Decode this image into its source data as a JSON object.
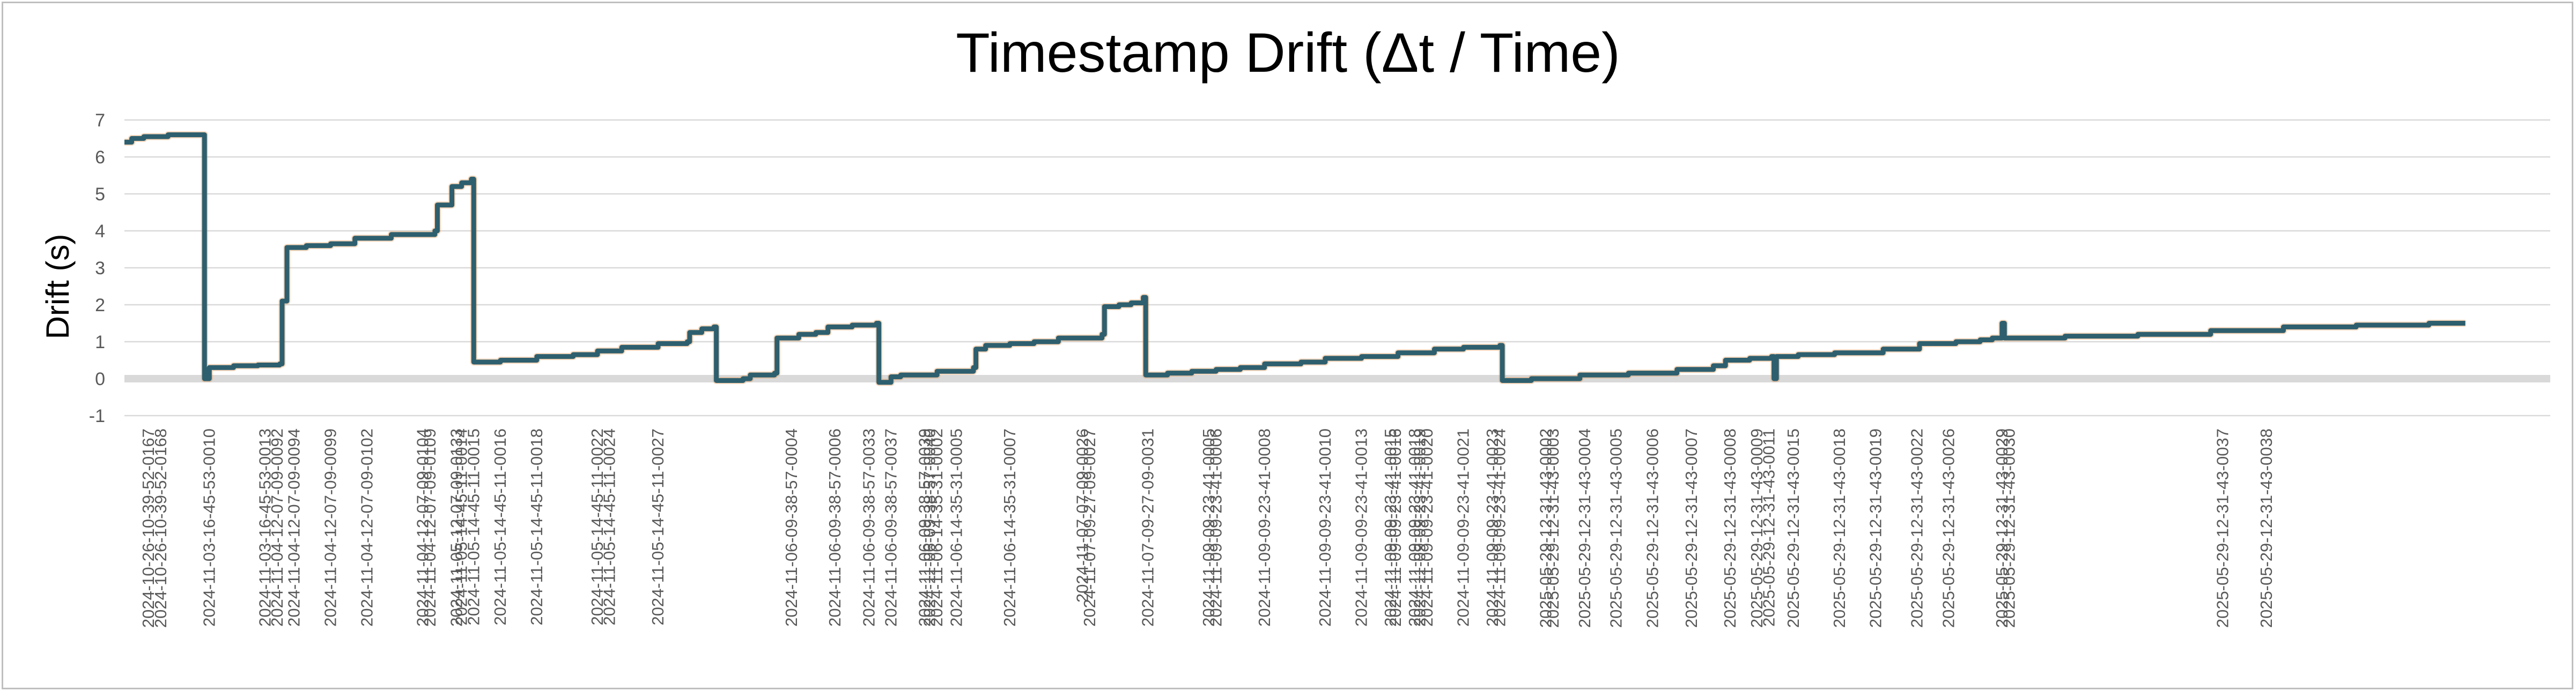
{
  "chart_data": {
    "type": "line",
    "title": "Timestamp Drift (Δt / Time)",
    "xlabel": "",
    "ylabel": "Drift (s)",
    "ylim": [
      -1,
      7
    ],
    "yticks": [
      -1,
      0,
      1,
      2,
      3,
      4,
      5,
      6,
      7
    ],
    "grid": true,
    "legend": "none",
    "colors": {
      "line": "#2e5f6e",
      "line_glow": "#e38a3c",
      "grid": "#d9d9d9",
      "zero_line": "#d9d9d9"
    },
    "x_count": 100,
    "x_labels": [
      {
        "i": 1.0,
        "label": "2024-10-26-10-39-52-0167"
      },
      {
        "i": 1.5,
        "label": "2024-10-26-10-39-52-0168"
      },
      {
        "i": 3.5,
        "label": "2024-11-03-16-45-53-0010"
      },
      {
        "i": 5.8,
        "label": "2024-11-03-16-45-53-0013"
      },
      {
        "i": 6.3,
        "label": "2024-11-04-12-07-09-0092"
      },
      {
        "i": 7.0,
        "label": "2024-11-04-12-07-09-0094"
      },
      {
        "i": 8.5,
        "label": "2024-11-04-12-07-09-0099"
      },
      {
        "i": 10.0,
        "label": "2024-11-04-12-07-09-0102"
      },
      {
        "i": 12.3,
        "label": "2024-11-04-12-07-09-0104"
      },
      {
        "i": 12.6,
        "label": "2024-11-04-12-07-09-0109"
      },
      {
        "i": 13.7,
        "label": "2024-11-05-12-07-09-0133"
      },
      {
        "i": 13.9,
        "label": "2024-11-05-14-45-11-0014"
      },
      {
        "i": 14.4,
        "label": "2024-11-05-14-45-11-0015"
      },
      {
        "i": 15.5,
        "label": "2024-11-05-14-45-11-0016"
      },
      {
        "i": 17.0,
        "label": "2024-11-05-14-45-11-0018"
      },
      {
        "i": 19.5,
        "label": "2024-11-05-14-45-11-0022"
      },
      {
        "i": 20.0,
        "label": "2024-11-05-14-45-11-0024"
      },
      {
        "i": 22.0,
        "label": "2024-11-05-14-45-11-0027"
      },
      {
        "i": 27.5,
        "label": "2024-11-06-09-38-57-0004"
      },
      {
        "i": 29.3,
        "label": "2024-11-06-09-38-57-0006"
      },
      {
        "i": 30.7,
        "label": "2024-11-06-09-38-57-0033"
      },
      {
        "i": 31.6,
        "label": "2024-11-06-09-38-57-0037"
      },
      {
        "i": 33.0,
        "label": "2024-11-06-09-38-57-0039"
      },
      {
        "i": 33.2,
        "label": "2024-11-06-09-38-57-0040"
      },
      {
        "i": 33.5,
        "label": "2024-11-06-14-35-31-0002"
      },
      {
        "i": 34.3,
        "label": "2024-11-06-14-35-31-0005"
      },
      {
        "i": 36.5,
        "label": "2024-11-06-14-35-31-0007"
      },
      {
        "i": 39.5,
        "label": "2024-11-07-07-09-0026"
      },
      {
        "i": 39.8,
        "label": "2024-11-07-09-27-09-0027"
      },
      {
        "i": 42.2,
        "label": "2024-11-07-09-27-09-0031"
      },
      {
        "i": 44.7,
        "label": "2024-11-09-09-23-41-0005"
      },
      {
        "i": 45.0,
        "label": "2024-11-09-09-23-41-0006"
      },
      {
        "i": 47.0,
        "label": "2024-11-09-09-23-41-0008"
      },
      {
        "i": 49.5,
        "label": "2024-11-09-09-23-41-0010"
      },
      {
        "i": 51.0,
        "label": "2024-11-09-09-23-41-0013"
      },
      {
        "i": 52.2,
        "label": "2024-11-09-09-23-41-0015"
      },
      {
        "i": 52.4,
        "label": "2024-11-09-09-23-41-0016"
      },
      {
        "i": 53.2,
        "label": "2024-11-09-09-23-41-0018"
      },
      {
        "i": 53.4,
        "label": "2024-11-09-09-23-41-0019"
      },
      {
        "i": 53.7,
        "label": "2024-11-09-09-23-41-0020"
      },
      {
        "i": 55.2,
        "label": "2024-11-09-09-23-41-0021"
      },
      {
        "i": 56.4,
        "label": "2024-11-09-09-23-41-0023"
      },
      {
        "i": 56.7,
        "label": "2024-11-09-09-23-41-0024"
      },
      {
        "i": 58.6,
        "label": "2025-05-29-12-31-43-0002"
      },
      {
        "i": 58.9,
        "label": "2025-05-29-12-31-43-0003"
      },
      {
        "i": 60.2,
        "label": "2025-05-29-12-31-43-0004"
      },
      {
        "i": 61.5,
        "label": "2025-05-29-12-31-43-0005"
      },
      {
        "i": 63.0,
        "label": "2025-05-29-12-31-43-0006"
      },
      {
        "i": 64.6,
        "label": "2025-05-29-12-31-43-0007"
      },
      {
        "i": 66.2,
        "label": "2025-05-29-12-31-43-0008"
      },
      {
        "i": 67.3,
        "label": "2025-05-29-12-31-43-0009"
      },
      {
        "i": 67.8,
        "label": "2025-05-29-12-31-43-0011"
      },
      {
        "i": 68.8,
        "label": "2025-05-29-12-31-43-0015"
      },
      {
        "i": 70.7,
        "label": "2025-05-29-12-31-43-0018"
      },
      {
        "i": 72.2,
        "label": "2025-05-29-12-31-43-0019"
      },
      {
        "i": 73.9,
        "label": "2025-05-29-12-31-43-0022"
      },
      {
        "i": 75.2,
        "label": "2025-05-29-12-31-43-0026"
      },
      {
        "i": 77.4,
        "label": "2025-05-29-12-31-43-0029"
      },
      {
        "i": 77.7,
        "label": "2025-05-29-12-31-43-0030"
      },
      {
        "i": 86.5,
        "label": "2025-05-29-12-31-43-0037"
      },
      {
        "i": 88.3,
        "label": "2025-05-29-12-31-43-0038"
      }
    ],
    "series": [
      {
        "points": [
          [
            0,
            6.4
          ],
          [
            0.3,
            6.5
          ],
          [
            0.8,
            6.55
          ],
          [
            1.8,
            6.6
          ],
          [
            3.2,
            6.6
          ],
          [
            3.3,
            0.0
          ],
          [
            3.5,
            0.3
          ],
          [
            4.5,
            0.35
          ],
          [
            5.5,
            0.37
          ],
          [
            6.4,
            0.4
          ],
          [
            6.5,
            2.1
          ],
          [
            6.7,
            3.55
          ],
          [
            7.5,
            3.6
          ],
          [
            8.5,
            3.65
          ],
          [
            9.5,
            3.8
          ],
          [
            11.0,
            3.9
          ],
          [
            12.8,
            4.0
          ],
          [
            12.9,
            4.7
          ],
          [
            13.4,
            4.7
          ],
          [
            13.5,
            5.2
          ],
          [
            13.9,
            5.3
          ],
          [
            14.3,
            5.4
          ],
          [
            14.4,
            0.45
          ],
          [
            15.5,
            0.5
          ],
          [
            17.0,
            0.6
          ],
          [
            18.5,
            0.65
          ],
          [
            19.5,
            0.75
          ],
          [
            20.5,
            0.85
          ],
          [
            22.0,
            0.95
          ],
          [
            23.2,
            1.0
          ],
          [
            23.3,
            1.25
          ],
          [
            23.8,
            1.35
          ],
          [
            24.3,
            1.4
          ],
          [
            24.4,
            -0.05
          ],
          [
            25.5,
            0.0
          ],
          [
            25.8,
            0.1
          ],
          [
            26.8,
            0.15
          ],
          [
            26.9,
            1.1
          ],
          [
            27.8,
            1.2
          ],
          [
            28.5,
            1.25
          ],
          [
            29.0,
            1.4
          ],
          [
            30.0,
            1.45
          ],
          [
            31.0,
            1.5
          ],
          [
            31.1,
            -0.1
          ],
          [
            31.6,
            0.05
          ],
          [
            32.0,
            0.1
          ],
          [
            33.5,
            0.2
          ],
          [
            35.0,
            0.3
          ],
          [
            35.1,
            0.8
          ],
          [
            35.5,
            0.9
          ],
          [
            36.5,
            0.95
          ],
          [
            37.5,
            1.0
          ],
          [
            38.5,
            1.1
          ],
          [
            40.3,
            1.2
          ],
          [
            40.4,
            1.95
          ],
          [
            41.0,
            2.0
          ],
          [
            41.5,
            2.05
          ],
          [
            42.0,
            2.2
          ],
          [
            42.1,
            0.1
          ],
          [
            43.0,
            0.15
          ],
          [
            44.0,
            0.2
          ],
          [
            45.0,
            0.25
          ],
          [
            46.0,
            0.3
          ],
          [
            47.0,
            0.4
          ],
          [
            48.5,
            0.45
          ],
          [
            49.5,
            0.55
          ],
          [
            51.0,
            0.6
          ],
          [
            52.5,
            0.7
          ],
          [
            54.0,
            0.8
          ],
          [
            55.2,
            0.85
          ],
          [
            56.7,
            0.9
          ],
          [
            56.8,
            -0.05
          ],
          [
            58.0,
            0.0
          ],
          [
            60.0,
            0.1
          ],
          [
            62.0,
            0.15
          ],
          [
            64.0,
            0.25
          ],
          [
            65.5,
            0.35
          ],
          [
            66.0,
            0.5
          ],
          [
            67.0,
            0.55
          ],
          [
            67.9,
            0.6
          ],
          [
            68.0,
            0.0
          ],
          [
            68.1,
            0.6
          ],
          [
            69.0,
            0.65
          ],
          [
            70.5,
            0.7
          ],
          [
            72.5,
            0.8
          ],
          [
            74.0,
            0.95
          ],
          [
            75.5,
            1.0
          ],
          [
            76.5,
            1.05
          ],
          [
            77.0,
            1.1
          ],
          [
            77.3,
            1.1
          ],
          [
            77.4,
            1.5
          ],
          [
            77.5,
            1.1
          ],
          [
            80.0,
            1.15
          ],
          [
            83.0,
            1.2
          ],
          [
            86.0,
            1.3
          ],
          [
            89.0,
            1.4
          ],
          [
            92.0,
            1.45
          ],
          [
            95.0,
            1.5
          ],
          [
            96.5,
            1.5
          ]
        ]
      }
    ]
  }
}
